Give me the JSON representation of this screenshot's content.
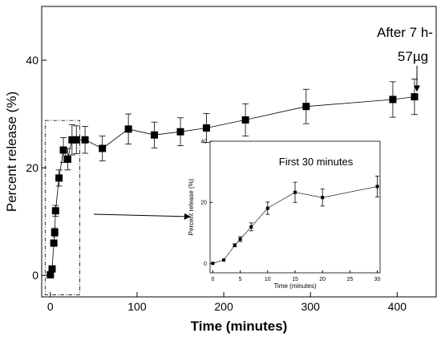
{
  "chart_data": [
    {
      "type": "scatter",
      "xlabel": "Time (minutes)",
      "ylabel": "Percent release (%)",
      "xlim": [
        -10,
        445
      ],
      "ylim": [
        -4,
        50
      ],
      "x_ticks": [
        0,
        100,
        200,
        300,
        400
      ],
      "y_ticks": [
        0,
        20,
        40
      ],
      "x_tick_labels": [
        "0",
        "100",
        "200",
        "300",
        "400"
      ],
      "y_tick_labels": [
        "0",
        "20",
        "40"
      ],
      "grid": false,
      "legend": "none",
      "marker": "square",
      "line": true,
      "annotation": {
        "line1": "After 7 h-",
        "line2": "57µg",
        "target_x": 420,
        "target_y": 33.2
      },
      "series": [
        {
          "x": [
            0,
            2,
            4,
            5,
            6,
            10,
            15,
            20,
            25,
            30,
            40,
            60,
            90,
            120,
            150,
            180,
            225,
            295,
            395,
            420
          ],
          "y": [
            0.1,
            1.2,
            6.0,
            8.0,
            12.0,
            18.1,
            23.3,
            21.6,
            25.2,
            25.2,
            25.2,
            23.6,
            27.2,
            26.1,
            26.7,
            27.4,
            28.9,
            31.4,
            32.7,
            33.2
          ],
          "err": [
            0,
            0,
            0.5,
            0.8,
            1.0,
            1.5,
            2.3,
            2.0,
            2.8,
            2.6,
            2.5,
            2.3,
            2.8,
            2.4,
            2.6,
            2.7,
            3.0,
            3.2,
            3.3,
            3.3
          ]
        }
      ]
    },
    {
      "type": "scatter",
      "title": "First 30 minutes",
      "xlabel": "Time (minutes)",
      "ylabel": "Percent release (%)",
      "xlim": [
        -0.5,
        30.5
      ],
      "ylim": [
        -3,
        40
      ],
      "x_ticks": [
        0,
        5,
        10,
        15,
        20,
        25,
        30
      ],
      "y_ticks": [
        0,
        20,
        40
      ],
      "x_tick_labels": [
        "0",
        "5",
        "10",
        "15",
        "20",
        "25",
        "30"
      ],
      "y_tick_labels": [
        "0",
        "20",
        "40"
      ],
      "grid": false,
      "legend": "none",
      "marker": "square",
      "line": true,
      "series": [
        {
          "x": [
            0,
            2,
            4,
            5,
            7,
            10,
            15,
            20,
            30
          ],
          "y": [
            0.1,
            1.2,
            6.0,
            8.0,
            12.0,
            18.1,
            23.3,
            21.6,
            25.2
          ],
          "err": [
            0,
            0,
            0.5,
            0.8,
            1.3,
            2.0,
            3.3,
            2.8,
            3.4
          ]
        }
      ]
    }
  ]
}
